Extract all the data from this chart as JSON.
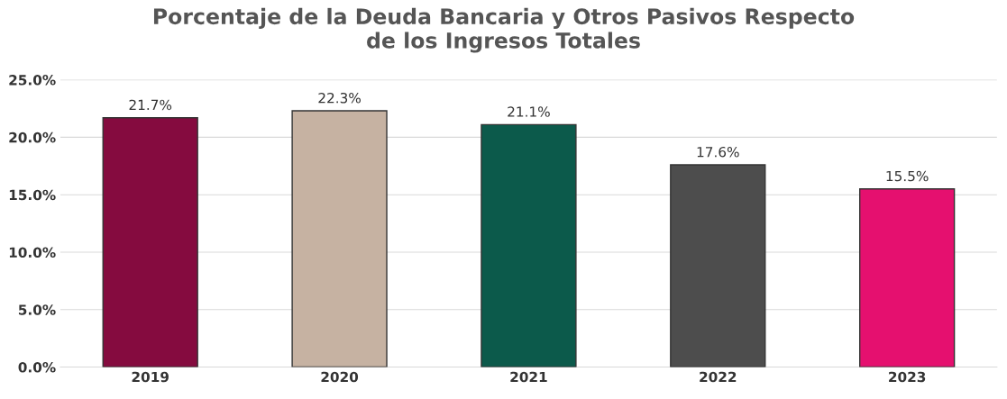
{
  "chart_data": {
    "type": "bar",
    "title": "Porcentaje de la Deuda Bancaria y Otros Pasivos Respecto\nde los Ingresos Totales",
    "categories": [
      "2019",
      "2020",
      "2021",
      "2022",
      "2023"
    ],
    "values": [
      21.7,
      22.3,
      21.1,
      17.6,
      15.5
    ],
    "colors": [
      "#850b3f",
      "#c6b2a2",
      "#0c5a4b",
      "#4d4d4d",
      "#e5106f"
    ],
    "value_labels": [
      "21.7%",
      "22.3%",
      "21.1%",
      "17.6%",
      "15.5%"
    ],
    "ylim": [
      0,
      25
    ],
    "yticks": [
      {
        "value": 0,
        "label": "0.0%"
      },
      {
        "value": 5,
        "label": "5.0%"
      },
      {
        "value": 10,
        "label": "10.0%"
      },
      {
        "value": 15,
        "label": "15.0%"
      },
      {
        "value": 20,
        "label": "20.0%"
      },
      {
        "value": 25,
        "label": "25.0%"
      }
    ],
    "grid": "y",
    "legend": false
  }
}
